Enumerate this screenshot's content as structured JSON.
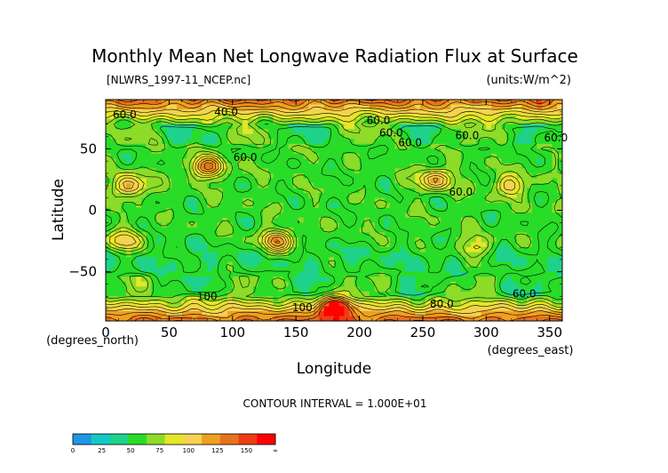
{
  "chart_data": {
    "type": "heatmap",
    "title": "Monthly Mean Net Longwave Radiation Flux at Surface",
    "subtitle_left": "[NLWRS_1997-11_NCEP.nc]",
    "subtitle_right": "(units:W/m^2)",
    "xlabel": "Longitude",
    "ylabel": "Latitude",
    "x_unit_label": "(degrees_east)",
    "y_unit_label": "(degrees_north)",
    "xlim": [
      0,
      360
    ],
    "ylim": [
      -90,
      90
    ],
    "x_ticks": [
      "0",
      "50",
      "100",
      "150",
      "200",
      "250",
      "300",
      "350"
    ],
    "y_ticks": [
      "50",
      "0",
      "-50"
    ],
    "contour_interval_text": "CONTOUR INTERVAL = 1.000E+01",
    "contour_labels": [
      "60.0",
      "40.0",
      "60.0",
      "60.0",
      "60.0",
      "60.0",
      "60.0",
      "60.0",
      "60.0",
      "100",
      "100",
      "80.0",
      "60.0"
    ],
    "colorbar": {
      "ticks": [
        "0",
        "25",
        "50",
        "75",
        "100",
        "125",
        "150",
        "∞"
      ],
      "colors": [
        "#1e96e6",
        "#14c8c8",
        "#1ed28c",
        "#28dc28",
        "#8cdc28",
        "#e6e628",
        "#f5d250",
        "#f0a01e",
        "#e6731e",
        "#f03c14",
        "#ff0000"
      ]
    },
    "features": [
      {
        "lon": 80,
        "lat": 35,
        "value": 120
      },
      {
        "lon": 320,
        "lat": 20,
        "value": 95
      },
      {
        "lon": 260,
        "lat": 25,
        "value": 110
      },
      {
        "lon": 15,
        "lat": -25,
        "value": 100
      },
      {
        "lon": 135,
        "lat": -25,
        "value": 115
      },
      {
        "lon": 290,
        "lat": -30,
        "value": 90
      },
      {
        "lon": 20,
        "lat": 20,
        "value": 110
      },
      {
        "lon": 180,
        "lat": -80,
        "value": 130
      }
    ]
  }
}
